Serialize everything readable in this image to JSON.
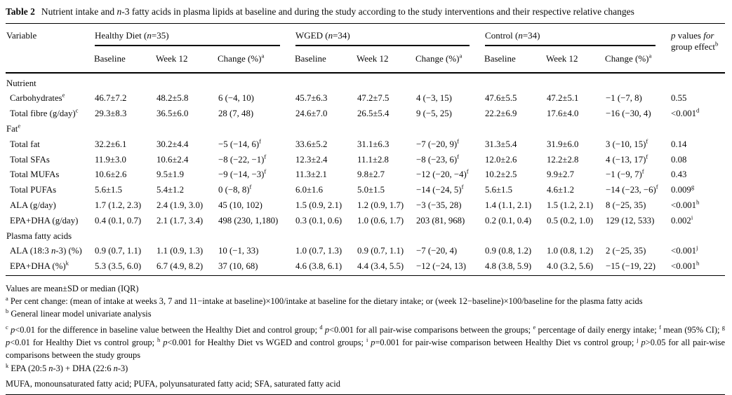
{
  "caption": {
    "label": "Table 2",
    "text": "Nutrient intake and *n*-3 fatty acids in plasma lipids at baseline and during the study according to the study interventions and their respective relative changes"
  },
  "header": {
    "variable": "Variable",
    "p_values": "*p* values *for* group effect^b",
    "groups": [
      {
        "label": "Healthy Diet (*n*=35)",
        "sub": [
          "Baseline",
          "Week 12",
          "Change (%)^a"
        ]
      },
      {
        "label": "WGED (*n*=34)",
        "sub": [
          "Baseline",
          "Week 12",
          "Change (%)^a"
        ]
      },
      {
        "label": "Control (*n*=34)",
        "sub": [
          "Baseline",
          "Week 12",
          "Change (%)^a"
        ]
      }
    ]
  },
  "table": {
    "rows": [
      {
        "label": "Nutrient",
        "section": true
      },
      {
        "label": "Carbohydrates^e",
        "cells": [
          "46.7±7.2",
          "48.2±5.8",
          "6 (−4, 10)",
          "45.7±6.3",
          "47.2±7.5",
          "4 (−3, 15)",
          "47.6±5.5",
          "47.2±5.1",
          "−1 (−7, 8)",
          "0.55"
        ]
      },
      {
        "label": "Total fibre (g/day)^c",
        "cells": [
          "29.3±8.3",
          "36.5±6.0",
          "28 (7, 48)",
          "24.6±7.0",
          "26.5±5.4",
          "9 (−5, 25)",
          "22.2±6.9",
          "17.6±4.0",
          "−16 (−30, 4)",
          "<0.001^d"
        ]
      },
      {
        "label": "Fat^e",
        "section": true
      },
      {
        "label": "Total fat",
        "cells": [
          "32.2±6.1",
          "30.2±4.4",
          "−5 (−14, 6)^f",
          "33.6±5.2",
          "31.1±6.3",
          "−7 (−20, 9)^f",
          "31.3±5.4",
          "31.9±6.0",
          "3 (−10, 15)^f",
          "0.14"
        ]
      },
      {
        "label": "Total SFAs",
        "cells": [
          "11.9±3.0",
          "10.6±2.4",
          "−8 (−22, −1)^f",
          "12.3±2.4",
          "11.1±2.8",
          "−8 (−23, 6)^f",
          "12.0±2.6",
          "12.2±2.8",
          "4 (−13, 17)^f",
          "0.08"
        ]
      },
      {
        "label": "Total MUFAs",
        "cells": [
          "10.6±2.6",
          "9.5±1.9",
          "−9 (−14, −3)^f",
          "11.3±2.1",
          "9.8±2.7",
          "−12 (−20, −4)^f",
          "10.2±2.5",
          "9.9±2.7",
          "−1 (−9, 7)^f",
          "0.43"
        ]
      },
      {
        "label": "Total PUFAs",
        "cells": [
          "5.6±1.5",
          "5.4±1.2",
          "0 (−8, 8)^f",
          "6.0±1.6",
          "5.0±1.5",
          "−14 (−24, 5)^f",
          "5.6±1.5",
          "4.6±1.2",
          "−14 (−23, −6)^f",
          "0.009^g"
        ]
      },
      {
        "label": "ALA (g/day)",
        "cells": [
          "1.7 (1.2, 2.3)",
          "2.4 (1.9, 3.0)",
          "45 (10, 102)",
          "1.5 (0.9, 2.1)",
          "1.2 (0.9, 1.7)",
          "−3 (−35, 28)",
          "1.4 (1.1, 2.1)",
          "1.5 (1.2, 2.1)",
          "8 (−25, 35)",
          "<0.001^h"
        ]
      },
      {
        "label": "EPA+DHA (g/day)",
        "cells": [
          "0.4 (0.1, 0.7)",
          "2.1 (1.7, 3.4)",
          "498 (230, 1,180)",
          "0.3 (0.1, 0.6)",
          "1.0 (0.6, 1.7)",
          "203 (81, 968)",
          "0.2 (0.1, 0.4)",
          "0.5 (0.2, 1.0)",
          "129 (12, 533)",
          "0.002^i"
        ]
      },
      {
        "label": "Plasma fatty acids",
        "section": true
      },
      {
        "label": "ALA (18:3 *n*-3) (%)",
        "cells": [
          "0.9 (0.7, 1.1)",
          "1.1 (0.9, 1.3)",
          "10 (−1, 33)",
          "1.0 (0.7, 1.3)",
          "0.9 (0.7, 1.1)",
          "−7 (−20, 4)",
          "0.9 (0.8, 1.2)",
          "1.0 (0.8, 1.2)",
          "2 (−25, 35)",
          "<0.001^j"
        ]
      },
      {
        "label": "EPA+DHA (%)^k",
        "cells": [
          "5.3 (3.5, 6.0)",
          "6.7 (4.9, 8.2)",
          "37 (10, 68)",
          "4.6 (3.8, 6.1)",
          "4.4 (3.4, 5.5)",
          "−12 (−24, 13)",
          "4.8 (3.8, 5.9)",
          "4.0 (3.2, 5.6)",
          "−15 (−19, 22)",
          "<0.001^h"
        ]
      }
    ]
  },
  "footnotes": [
    "Values are mean±SD or median (IQR)",
    "^a Per cent change: (mean of intake at weeks 3, 7 and 11−intake at baseline)×100/intake at baseline for the dietary intake; or (week 12−baseline)×100/baseline for the plasma fatty acids",
    "^b General linear model univariate analysis",
    "^c *p*<0.01 for the difference in baseline value between the Healthy Diet and control group; ^d *p*<0.001 for all pair-wise comparisons between the groups; ^e percentage of daily energy intake; ^f mean (95% CI); ^g *p*<0.01 for Healthy Diet vs control group; ^h *p*<0.001 for Healthy Diet vs WGED and control groups; ^i *p*=0.001 for pair-wise comparison between Healthy Diet vs control group; ^j *p*>0.05 for all pair-wise comparisons between the study groups",
    "^k EPA (20:5 *n*-3) + DHA (22:6 *n*-3)",
    "MUFA, monounsaturated fatty acid; PUFA, polyunsaturated fatty acid; SFA, saturated fatty acid"
  ]
}
